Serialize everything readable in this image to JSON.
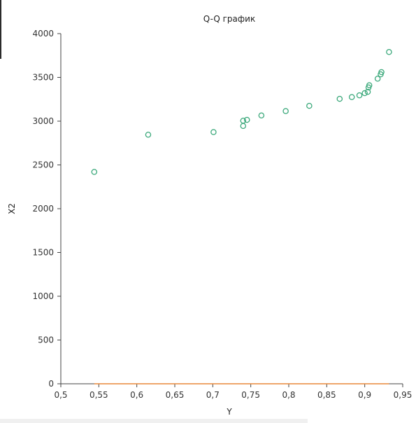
{
  "chart_data": {
    "type": "scatter",
    "title": "Q-Q график",
    "xlabel": "Y",
    "ylabel": "X2",
    "xlim": [
      0.5,
      0.95
    ],
    "ylim": [
      0,
      4000
    ],
    "x_ticks": [
      "0,5",
      "0,55",
      "0,6",
      "0,65",
      "0,7",
      "0,75",
      "0,8",
      "0,85",
      "0,9",
      "0,95"
    ],
    "y_ticks": [
      "0",
      "500",
      "1000",
      "1500",
      "2000",
      "2500",
      "3000",
      "3500",
      "4000"
    ],
    "grid": false,
    "colors": {
      "points": "#3aa87a",
      "line": "#e8893a",
      "axis": "#444444"
    },
    "points": [
      {
        "x": 0.544,
        "y": 2420
      },
      {
        "x": 0.615,
        "y": 2845
      },
      {
        "x": 0.701,
        "y": 2875
      },
      {
        "x": 0.74,
        "y": 2945
      },
      {
        "x": 0.74,
        "y": 3005
      },
      {
        "x": 0.745,
        "y": 3015
      },
      {
        "x": 0.764,
        "y": 3065
      },
      {
        "x": 0.796,
        "y": 3115
      },
      {
        "x": 0.827,
        "y": 3175
      },
      {
        "x": 0.867,
        "y": 3255
      },
      {
        "x": 0.883,
        "y": 3275
      },
      {
        "x": 0.893,
        "y": 3295
      },
      {
        "x": 0.9,
        "y": 3320
      },
      {
        "x": 0.904,
        "y": 3335
      },
      {
        "x": 0.905,
        "y": 3385
      },
      {
        "x": 0.906,
        "y": 3410
      },
      {
        "x": 0.917,
        "y": 3485
      },
      {
        "x": 0.921,
        "y": 3535
      },
      {
        "x": 0.922,
        "y": 3560
      },
      {
        "x": 0.932,
        "y": 3790
      }
    ],
    "reference_line": {
      "x": [
        0.544,
        0.932
      ],
      "y": [
        0,
        0
      ]
    }
  }
}
